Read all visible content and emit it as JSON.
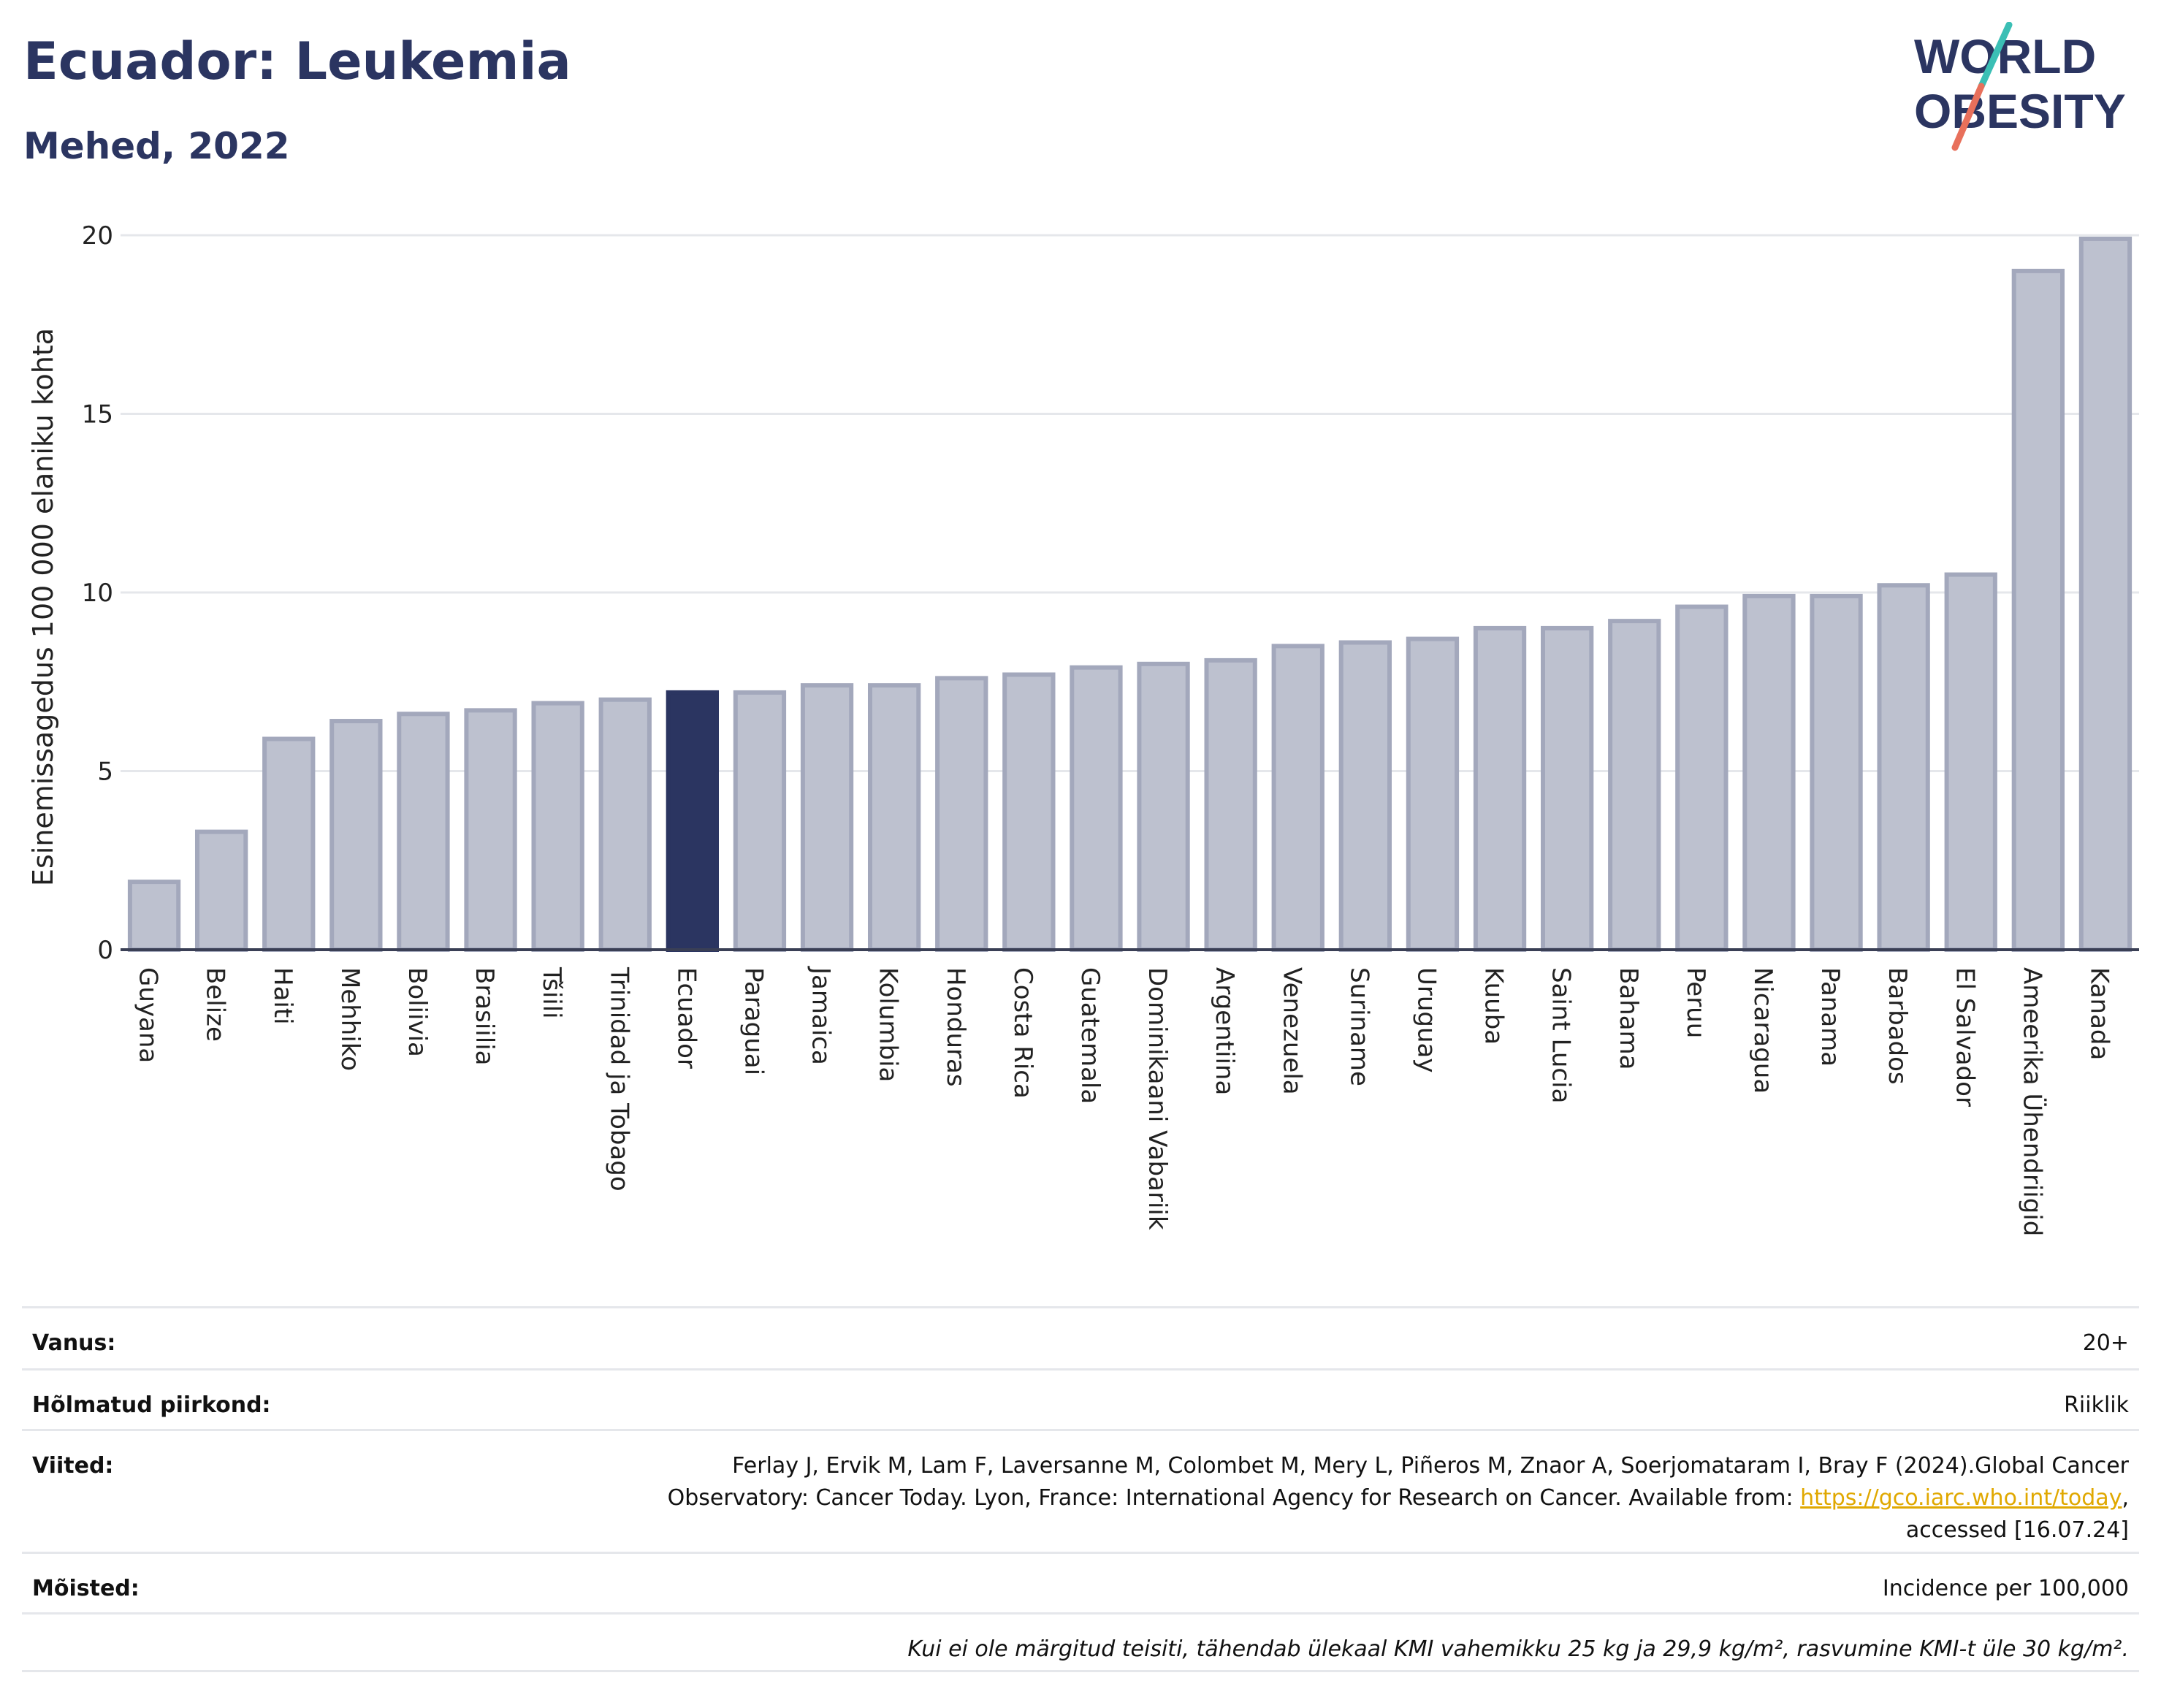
{
  "header": {
    "title": "Ecuador: Leukemia",
    "subtitle": "Mehed, 2022"
  },
  "logo": {
    "line1": "WORLD",
    "line2": "OBESITY",
    "colors": {
      "text": "#2b3561",
      "slash_top": "#3bbfb5",
      "slash_bottom": "#e8705b"
    }
  },
  "chart_data": {
    "type": "bar",
    "ylabel": "Esinemissagedus 100 000 elaniku kohta",
    "xlabel": "",
    "ylim": [
      0,
      20
    ],
    "yticks": [
      0,
      5,
      10,
      15,
      20
    ],
    "grid": true,
    "highlight": "Ecuador",
    "colors": {
      "bar": "#bdc1cf",
      "bar_border": "#a3a8bc",
      "highlight": "#2b3561",
      "grid": "#e5e7eb",
      "axis": "#3a3f55"
    },
    "categories": [
      "Guyana",
      "Belize",
      "Haiti",
      "Mehhiko",
      "Boliivia",
      "Brasiilia",
      "Tšiili",
      "Trinidad ja Tobago",
      "Ecuador",
      "Paraguai",
      "Jamaica",
      "Kolumbia",
      "Honduras",
      "Costa Rica",
      "Guatemala",
      "Dominikaani Vabariik",
      "Argentiina",
      "Venezuela",
      "Suriname",
      "Uruguay",
      "Kuuba",
      "Saint Lucia",
      "Bahama",
      "Peruu",
      "Nicaragua",
      "Panama",
      "Barbados",
      "El Salvador",
      "Ameerika Ühendriigid",
      "Kanada"
    ],
    "values": [
      1.9,
      3.3,
      5.9,
      6.4,
      6.6,
      6.7,
      6.9,
      7.0,
      7.2,
      7.2,
      7.4,
      7.4,
      7.6,
      7.7,
      7.9,
      8.0,
      8.1,
      8.5,
      8.6,
      8.7,
      9.0,
      9.0,
      9.2,
      9.6,
      9.9,
      9.9,
      10.2,
      10.5,
      19.0,
      19.9
    ]
  },
  "meta": {
    "age_label": "Vanus:",
    "age_value": "20+",
    "coverage_label": "Hõlmatud piirkond:",
    "coverage_value": "Riiklik",
    "refs_label": "Viited:",
    "refs_line1": "Ferlay J, Ervik M, Lam F, Laversanne M, Colombet M, Mery L, Piñeros M, Znaor A, Soerjomataram I, Bray F (2024).Global Cancer",
    "refs_line2_prefix": "Observatory: Cancer Today. Lyon, France: International Agency for Research on Cancer. Available from: ",
    "refs_link": "https://gco.iarc.who.int/today",
    "refs_line2_suffix": ",",
    "refs_line3": "accessed [16.07.24]",
    "definitions_label": "Mõisted:",
    "definitions_value": "Incidence per 100,000",
    "footnote": "Kui ei ole märgitud teisiti, tähendab ülekaal KMI vahemikku 25 kg ja 29,9 kg/m², rasvumine KMI-t üle 30 kg/m²."
  }
}
